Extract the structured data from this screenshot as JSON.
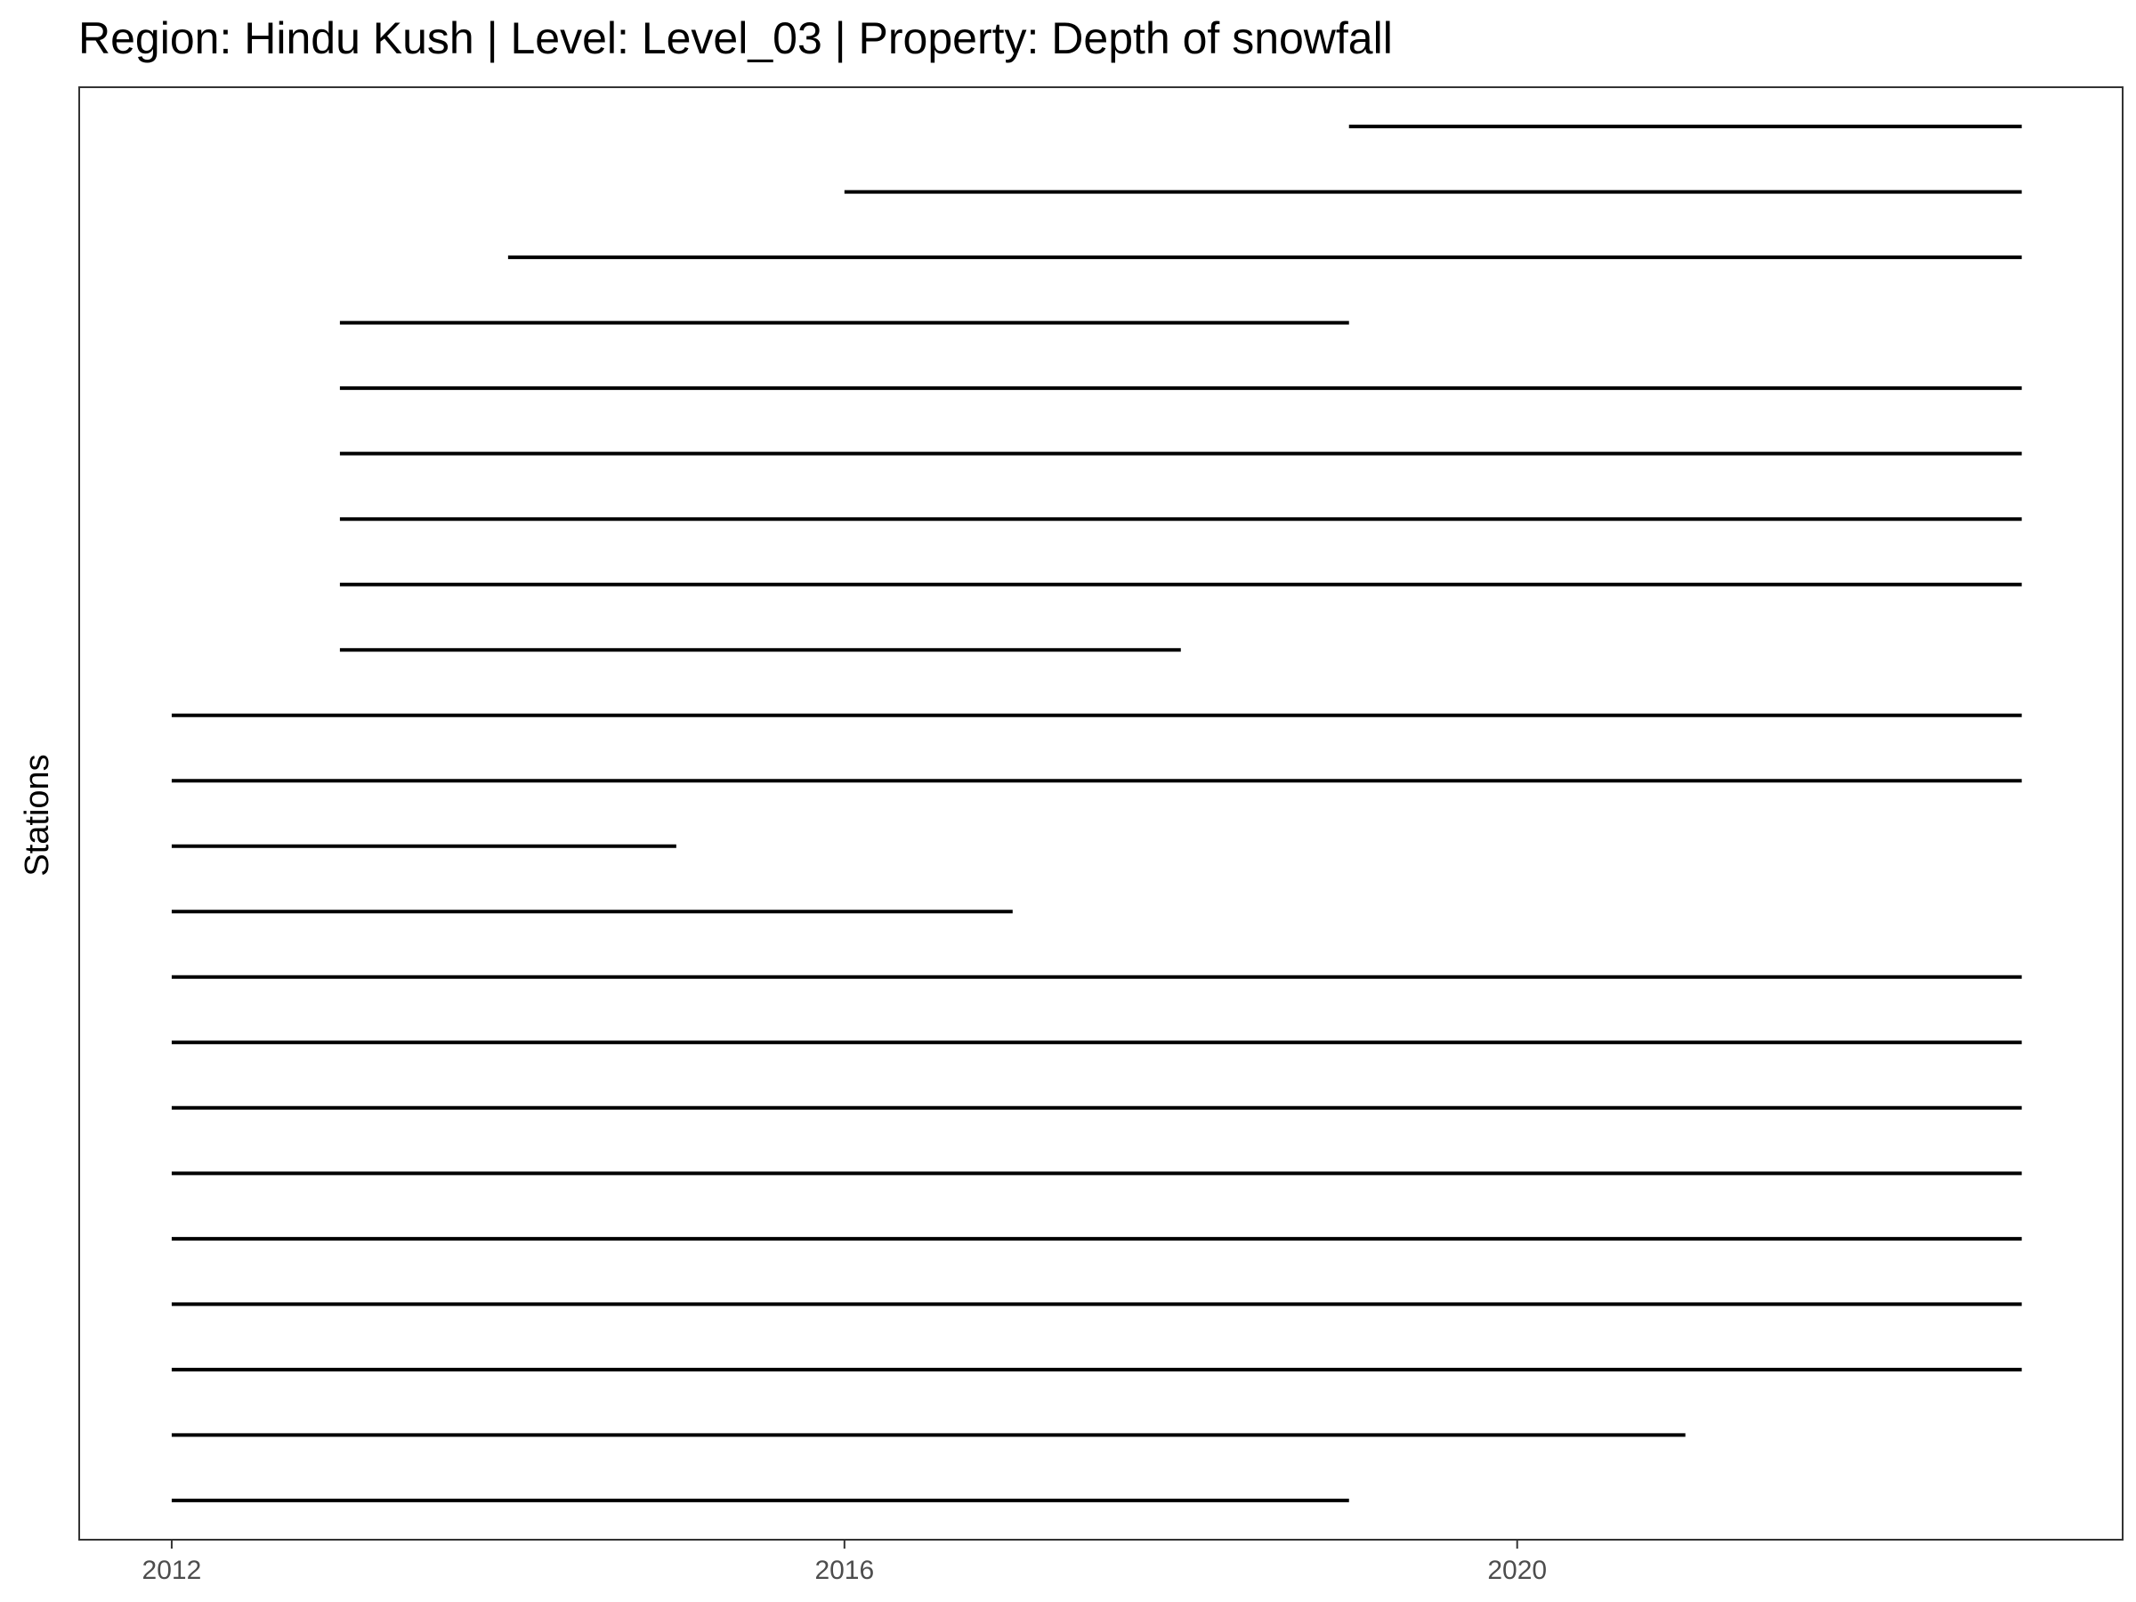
{
  "chart_data": {
    "type": "line",
    "title": "Region: Hindu Kush | Level: Level_03 | Property: Depth of snowfall",
    "xlabel": "",
    "ylabel": "Stations",
    "xlim": [
      2011.45,
      2023.6
    ],
    "x_ticks": [
      2012,
      2016,
      2020
    ],
    "x_tick_labels": [
      "2012",
      "2016",
      "2020"
    ],
    "grid": false,
    "legend": "none",
    "colors": {
      "segment": "#000000",
      "panel_border": "#333333",
      "tick_label": "#4d4d4d"
    },
    "segments": [
      {
        "start": 2012.0,
        "end": 2019.0
      },
      {
        "start": 2012.0,
        "end": 2021.0
      },
      {
        "start": 2012.0,
        "end": 2023.0
      },
      {
        "start": 2012.0,
        "end": 2023.0
      },
      {
        "start": 2012.0,
        "end": 2023.0
      },
      {
        "start": 2012.0,
        "end": 2023.0
      },
      {
        "start": 2012.0,
        "end": 2023.0
      },
      {
        "start": 2012.0,
        "end": 2023.0
      },
      {
        "start": 2012.0,
        "end": 2023.0
      },
      {
        "start": 2012.0,
        "end": 2017.0
      },
      {
        "start": 2012.0,
        "end": 2015.0
      },
      {
        "start": 2012.0,
        "end": 2023.0
      },
      {
        "start": 2012.0,
        "end": 2023.0
      },
      {
        "start": 2013.0,
        "end": 2018.0
      },
      {
        "start": 2013.0,
        "end": 2023.0
      },
      {
        "start": 2013.0,
        "end": 2023.0
      },
      {
        "start": 2013.0,
        "end": 2023.0
      },
      {
        "start": 2013.0,
        "end": 2023.0
      },
      {
        "start": 2013.0,
        "end": 2019.0
      },
      {
        "start": 2014.0,
        "end": 2023.0
      },
      {
        "start": 2016.0,
        "end": 2023.0
      },
      {
        "start": 2019.0,
        "end": 2023.0
      }
    ]
  }
}
